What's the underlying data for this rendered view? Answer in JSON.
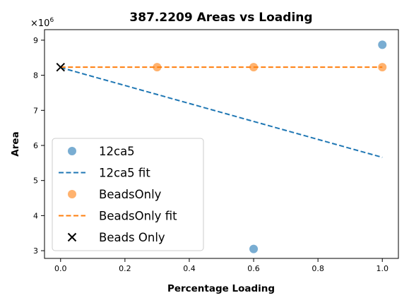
{
  "chart_data": {
    "type": "scatter",
    "title": "387.2209 Areas vs Loading",
    "xlabel": "Percentage Loading",
    "ylabel": "Area",
    "y_multiplier_label": "×10",
    "y_multiplier_exp": "6",
    "xlim": [
      -0.05,
      1.05
    ],
    "ylim": [
      2.78,
      9.3
    ],
    "xticks": [
      0.0,
      0.2,
      0.4,
      0.6,
      0.8,
      1.0
    ],
    "xtick_labels": [
      "0.0",
      "0.2",
      "0.4",
      "0.6",
      "0.8",
      "1.0"
    ],
    "yticks": [
      3,
      4,
      5,
      6,
      7,
      8,
      9
    ],
    "ytick_labels": [
      "3",
      "4",
      "5",
      "6",
      "7",
      "8",
      "9"
    ],
    "grid": false,
    "legend_position": "lower-left",
    "series": [
      {
        "name": "12ca5",
        "kind": "scatter",
        "color": "#1f77b4",
        "points": [
          {
            "x": 0.6,
            "y": 3.05
          },
          {
            "x": 1.0,
            "y": 8.87
          }
        ]
      },
      {
        "name": "12ca5 fit",
        "kind": "line",
        "color": "#1f77b4",
        "points": [
          {
            "x": 0.0,
            "y": 8.22
          },
          {
            "x": 1.0,
            "y": 5.66
          }
        ]
      },
      {
        "name": "BeadsOnly",
        "kind": "scatter",
        "color": "#ff7f0e",
        "points": [
          {
            "x": 0.3,
            "y": 8.23
          },
          {
            "x": 0.6,
            "y": 8.23
          },
          {
            "x": 1.0,
            "y": 8.23
          }
        ]
      },
      {
        "name": "BeadsOnly fit",
        "kind": "line",
        "color": "#ff7f0e",
        "points": [
          {
            "x": 0.0,
            "y": 8.23
          },
          {
            "x": 1.0,
            "y": 8.23
          }
        ]
      },
      {
        "name": "Beads Only",
        "kind": "cross",
        "color": "#000000",
        "points": [
          {
            "x": 0.0,
            "y": 8.23
          }
        ]
      }
    ]
  }
}
